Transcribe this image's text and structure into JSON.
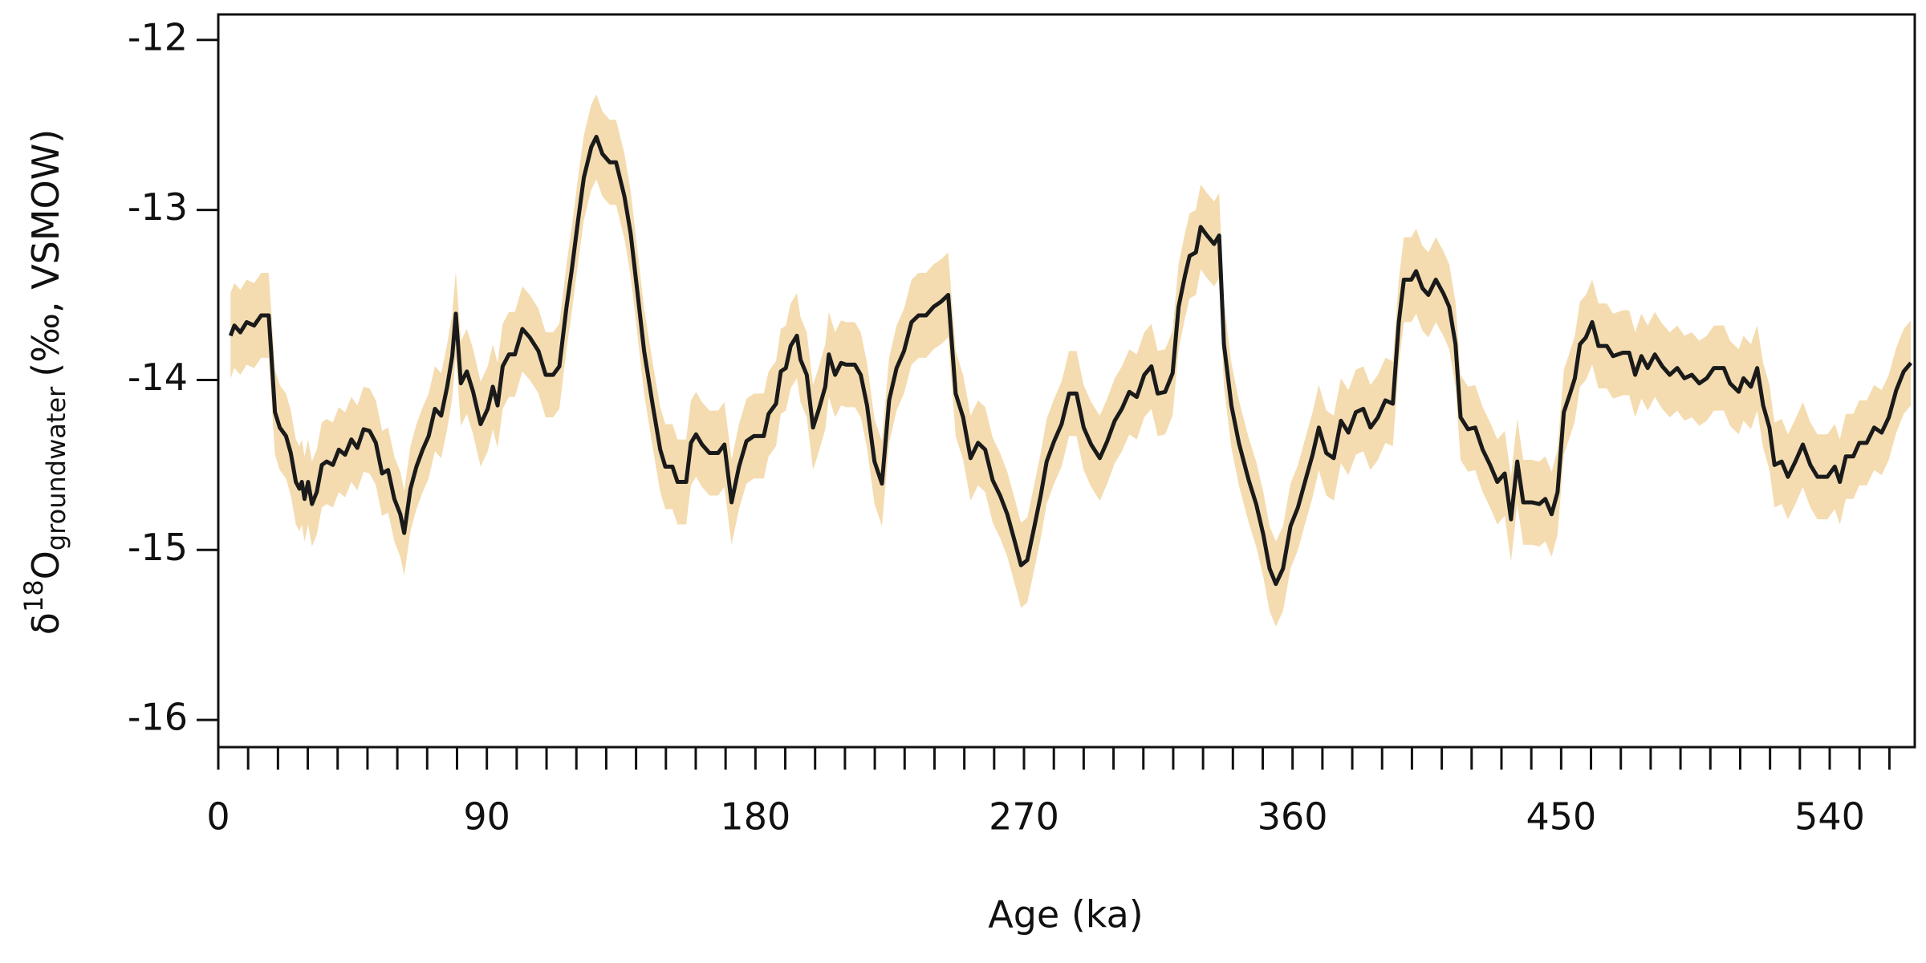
{
  "chart_data": {
    "type": "line",
    "xlabel": "Age (ka)",
    "ylabel": {
      "symbol": "δ",
      "superscript": "18",
      "element": "O",
      "subscript": "groundwater",
      "unit": "(‰, VSMOW)"
    },
    "xlim": [
      0,
      568.5
    ],
    "ylim": [
      -16.16,
      -11.85
    ],
    "xticks": [
      0,
      90,
      180,
      270,
      360,
      450,
      540
    ],
    "xminor_ticks": [
      10,
      20,
      30,
      40,
      50,
      60,
      70,
      80,
      100,
      110,
      120,
      130,
      140,
      150,
      160,
      170,
      190,
      200,
      210,
      220,
      230,
      240,
      250,
      260,
      280,
      290,
      300,
      310,
      320,
      330,
      340,
      350,
      370,
      380,
      390,
      400,
      410,
      420,
      430,
      440,
      460,
      470,
      480,
      490,
      500,
      510,
      520,
      530,
      550,
      560
    ],
    "yticks": [
      -12,
      -13,
      -14,
      -15,
      -16
    ],
    "series": [
      {
        "color": "#1a1a1a",
        "band_color": "#f4dcb0",
        "band_halfwidth": 0.25,
        "x": [
          4.1,
          5.4,
          7.4,
          9.5,
          12,
          14.4,
          16.9,
          17.7,
          19,
          20.6,
          22.7,
          24.3,
          26,
          27.2,
          28,
          28.9,
          30.1,
          31.4,
          33,
          34.7,
          36.3,
          38.4,
          40.4,
          42.5,
          44.6,
          46.6,
          48.7,
          50.7,
          52.8,
          54.9,
          56.9,
          59,
          61,
          62.3,
          64.4,
          66.4,
          68.5,
          70.5,
          72.6,
          74.7,
          76.7,
          78.4,
          79.6,
          81.3,
          83.3,
          85.4,
          87.9,
          90.3,
          92,
          93.6,
          95.3,
          97.4,
          99.4,
          101.9,
          104.4,
          107.3,
          109.7,
          112.2,
          114.3,
          116.7,
          118.4,
          120.5,
          122.5,
          125,
          126.7,
          128.7,
          131.2,
          133.3,
          136.1,
          138.2,
          140.3,
          142.7,
          145.6,
          148.1,
          149.8,
          152.2,
          153.9,
          156.8,
          158.4,
          160.1,
          162.1,
          164.6,
          167.5,
          169.6,
          172,
          174.5,
          177,
          179.5,
          182.8,
          184.4,
          186.9,
          188.5,
          190.2,
          191.8,
          193.9,
          195.1,
          197.2,
          199.3,
          201.3,
          203.4,
          204.6,
          206.7,
          208.7,
          210.4,
          213.3,
          215.3,
          217.4,
          219.9,
          222.4,
          224.8,
          227.3,
          229.8,
          232.3,
          234.7,
          237.2,
          239.7,
          242.2,
          244.6,
          247.1,
          249.6,
          252.1,
          254.6,
          257,
          259.5,
          262,
          264.4,
          266.9,
          269,
          271.1,
          273.5,
          275.6,
          277.6,
          280.1,
          282.6,
          285.1,
          287.6,
          290,
          292.5,
          295.4,
          297.9,
          300.4,
          302.8,
          305.3,
          307.8,
          310.3,
          312.7,
          314.8,
          317.3,
          319.8,
          321.8,
          323.9,
          325.5,
          327.6,
          329.2,
          331.3,
          333.7,
          335.4,
          337,
          339.5,
          342,
          345.3,
          347.8,
          350.2,
          352.3,
          354.4,
          356.8,
          359.3,
          361.8,
          364.3,
          366.7,
          368.8,
          371.3,
          373.8,
          376.2,
          378.7,
          381.2,
          383.7,
          386.1,
          388.6,
          391.1,
          393.6,
          395.6,
          397.3,
          399.8,
          401.4,
          403.5,
          405.5,
          408,
          410.5,
          412.5,
          414.6,
          416.3,
          418.8,
          421.2,
          423.7,
          426.2,
          428.6,
          431.1,
          433.2,
          435.3,
          437.3,
          440.2,
          442.7,
          444.7,
          446.8,
          448.8,
          450.9,
          453,
          454.6,
          456.3,
          458.3,
          460.4,
          462.5,
          465.3,
          467.4,
          470.7,
          472.8,
          474.8,
          476.9,
          479,
          481.4,
          483.9,
          486.4,
          488.9,
          491.3,
          493.8,
          496.3,
          498.8,
          501.2,
          504.5,
          506.6,
          509.5,
          511.1,
          513.6,
          515.7,
          517.7,
          519.8,
          521.5,
          523.9,
          526,
          528.5,
          531,
          533.5,
          535.9,
          539.2,
          541.7,
          543.4,
          545.4,
          547.9,
          549.9,
          552.4,
          554.9,
          557.4,
          559.8,
          562.3,
          564.8,
          567.2
        ],
        "values": [
          -13.74,
          -13.68,
          -13.72,
          -13.66,
          -13.68,
          -13.62,
          -13.62,
          -13.83,
          -14.19,
          -14.28,
          -14.33,
          -14.43,
          -14.6,
          -14.64,
          -14.6,
          -14.7,
          -14.6,
          -14.73,
          -14.66,
          -14.5,
          -14.48,
          -14.5,
          -14.41,
          -14.44,
          -14.35,
          -14.4,
          -14.29,
          -14.3,
          -14.37,
          -14.55,
          -14.53,
          -14.7,
          -14.79,
          -14.9,
          -14.64,
          -14.51,
          -14.41,
          -14.33,
          -14.17,
          -14.21,
          -14.04,
          -13.86,
          -13.61,
          -14.02,
          -13.95,
          -14.07,
          -14.26,
          -14.17,
          -14.04,
          -14.15,
          -13.92,
          -13.85,
          -13.85,
          -13.7,
          -13.75,
          -13.83,
          -13.97,
          -13.97,
          -13.92,
          -13.57,
          -13.36,
          -13.07,
          -12.81,
          -12.63,
          -12.57,
          -12.67,
          -12.72,
          -12.72,
          -12.92,
          -13.14,
          -13.46,
          -13.83,
          -14.15,
          -14.41,
          -14.51,
          -14.51,
          -14.6,
          -14.6,
          -14.37,
          -14.32,
          -14.38,
          -14.43,
          -14.43,
          -14.38,
          -14.72,
          -14.51,
          -14.36,
          -14.33,
          -14.33,
          -14.2,
          -14.14,
          -13.95,
          -13.93,
          -13.8,
          -13.74,
          -13.88,
          -13.97,
          -14.28,
          -14.17,
          -14.04,
          -13.85,
          -13.97,
          -13.9,
          -13.91,
          -13.91,
          -13.97,
          -14.15,
          -14.48,
          -14.61,
          -14.12,
          -13.93,
          -13.83,
          -13.66,
          -13.62,
          -13.62,
          -13.57,
          -13.54,
          -13.5,
          -14.08,
          -14.22,
          -14.46,
          -14.37,
          -14.41,
          -14.59,
          -14.68,
          -14.79,
          -14.95,
          -15.09,
          -15.06,
          -14.86,
          -14.68,
          -14.48,
          -14.36,
          -14.26,
          -14.08,
          -14.08,
          -14.28,
          -14.38,
          -14.46,
          -14.36,
          -14.24,
          -14.17,
          -14.07,
          -14.1,
          -13.97,
          -13.92,
          -14.08,
          -14.07,
          -13.96,
          -13.57,
          -13.39,
          -13.27,
          -13.25,
          -13.1,
          -13.15,
          -13.2,
          -13.15,
          -13.79,
          -14.15,
          -14.37,
          -14.59,
          -14.73,
          -14.91,
          -15.11,
          -15.2,
          -15.11,
          -14.86,
          -14.75,
          -14.59,
          -14.44,
          -14.28,
          -14.43,
          -14.46,
          -14.24,
          -14.31,
          -14.19,
          -14.17,
          -14.28,
          -14.22,
          -14.12,
          -14.14,
          -13.66,
          -13.41,
          -13.41,
          -13.36,
          -13.46,
          -13.5,
          -13.41,
          -13.49,
          -13.57,
          -13.79,
          -14.22,
          -14.29,
          -14.28,
          -14.41,
          -14.5,
          -14.6,
          -14.55,
          -14.82,
          -14.48,
          -14.72,
          -14.72,
          -14.73,
          -14.7,
          -14.79,
          -14.66,
          -14.19,
          -14.08,
          -13.99,
          -13.79,
          -13.75,
          -13.66,
          -13.8,
          -13.8,
          -13.86,
          -13.84,
          -13.84,
          -13.97,
          -13.86,
          -13.93,
          -13.85,
          -13.92,
          -13.97,
          -13.93,
          -13.99,
          -13.97,
          -14.02,
          -13.99,
          -13.93,
          -13.93,
          -14.02,
          -14.07,
          -13.99,
          -14.04,
          -13.93,
          -14.15,
          -14.28,
          -14.5,
          -14.48,
          -14.57,
          -14.48,
          -14.38,
          -14.5,
          -14.57,
          -14.57,
          -14.51,
          -14.6,
          -14.45,
          -14.45,
          -14.37,
          -14.37,
          -14.28,
          -14.31,
          -14.22,
          -14.06,
          -13.95,
          -13.9
        ]
      }
    ]
  }
}
